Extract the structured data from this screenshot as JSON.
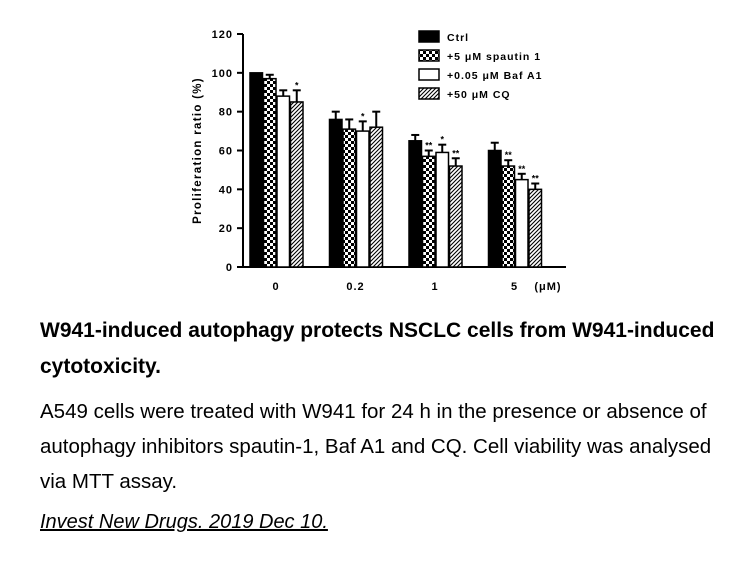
{
  "chart_data": {
    "type": "bar",
    "ylabel": "Proliferation ratio (%)",
    "ylim": [
      0,
      120
    ],
    "yticks": [
      0,
      20,
      40,
      60,
      80,
      100,
      120
    ],
    "categories": [
      "0",
      "0.2",
      "1",
      "5"
    ],
    "x_unit": "(μM)",
    "legend_position": "top-right",
    "series": [
      {
        "name": "Ctrl",
        "fill": "solid",
        "values": [
          100,
          76,
          65,
          60
        ],
        "errors": [
          0,
          4,
          3,
          4
        ],
        "sig": [
          "",
          "",
          "",
          ""
        ]
      },
      {
        "name": "+5 μM spautin 1",
        "fill": "checker",
        "values": [
          97,
          71,
          57,
          52
        ],
        "errors": [
          2,
          5,
          3,
          3
        ],
        "sig": [
          "",
          "",
          "**",
          "**"
        ]
      },
      {
        "name": "+0.05 μM Baf A1",
        "fill": "empty",
        "values": [
          88,
          70,
          59,
          45
        ],
        "errors": [
          3,
          5,
          4,
          3
        ],
        "sig": [
          "",
          "*",
          "*",
          "**"
        ]
      },
      {
        "name": "+50 μM CQ",
        "fill": "hatch",
        "values": [
          85,
          72,
          52,
          40
        ],
        "errors": [
          6,
          8,
          4,
          3
        ],
        "sig": [
          "*",
          "",
          "**",
          "**"
        ]
      }
    ],
    "colors": {
      "ink": "#000000",
      "background": "#ffffff"
    }
  },
  "caption": {
    "title": "W941-induced autophagy protects NSCLC cells from W941-induced cytotoxicity.",
    "body": "A549 cells were treated with W941 for 24 h in the presence or absence of autophagy inhibitors spautin-1, Baf A1 and CQ. Cell viability was analysed via MTT assay.",
    "citation": "Invest New Drugs. 2019 Dec 10."
  }
}
